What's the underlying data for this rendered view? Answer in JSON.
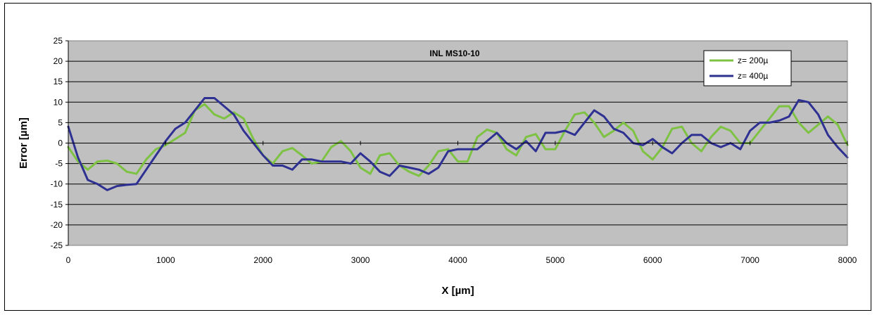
{
  "chart_data": {
    "type": "line",
    "title": "INL MS10-10",
    "xlabel": "X [µm]",
    "ylabel": "Error [µm]",
    "xlim": [
      0,
      8000
    ],
    "ylim": [
      -25,
      25
    ],
    "xticks": [
      0,
      1000,
      2000,
      3000,
      4000,
      5000,
      6000,
      7000,
      8000
    ],
    "yticks": [
      -25,
      -20,
      -15,
      -10,
      -5,
      0,
      5,
      10,
      15,
      20,
      25
    ],
    "grid": "horizontal",
    "legend": "top-right",
    "plot_background": "#c0c0c0",
    "series": [
      {
        "name": "z= 200µ",
        "color": "#7dc242",
        "x": [
          0,
          100,
          200,
          300,
          400,
          500,
          600,
          700,
          800,
          900,
          1000,
          1100,
          1200,
          1300,
          1400,
          1500,
          1600,
          1700,
          1800,
          1900,
          2000,
          2100,
          2200,
          2300,
          2400,
          2500,
          2600,
          2700,
          2800,
          2900,
          3000,
          3100,
          3200,
          3300,
          3400,
          3500,
          3600,
          3700,
          3800,
          3900,
          4000,
          4100,
          4200,
          4300,
          4400,
          4500,
          4600,
          4700,
          4800,
          4900,
          5000,
          5100,
          5200,
          5300,
          5400,
          5500,
          5600,
          5700,
          5800,
          5900,
          6000,
          6100,
          6200,
          6300,
          6400,
          6500,
          6600,
          6700,
          6800,
          6900,
          7000,
          7100,
          7200,
          7300,
          7400,
          7500,
          7600,
          7700,
          7800,
          7900,
          8000
        ],
        "y": [
          -1,
          -4.5,
          -6.5,
          -4.5,
          -4.3,
          -5,
          -7,
          -7.5,
          -4,
          -1.5,
          -0.5,
          1,
          2.5,
          8,
          9.5,
          7,
          6,
          7.5,
          6,
          1,
          -3,
          -5,
          -2,
          -1.2,
          -3,
          -5,
          -4.5,
          -1,
          0.5,
          -2,
          -6,
          -7.5,
          -3,
          -2.5,
          -5.5,
          -7,
          -8,
          -5.5,
          -2,
          -1.5,
          -4.5,
          -4.5,
          1.5,
          3.3,
          2.5,
          -1.5,
          -3,
          1.5,
          2.2,
          -1.5,
          -1.5,
          3,
          7,
          7.5,
          5,
          1.5,
          3,
          5,
          3,
          -2,
          -4,
          -1,
          3.5,
          4,
          0,
          -2,
          1.5,
          4,
          3,
          0,
          0,
          3,
          6,
          9,
          9,
          5,
          2.5,
          4.5,
          6.5,
          4.5,
          -0.5
        ]
      },
      {
        "name": "z= 400µ",
        "color": "#2e3192",
        "x": [
          0,
          100,
          200,
          300,
          400,
          500,
          600,
          700,
          800,
          900,
          1000,
          1100,
          1200,
          1300,
          1400,
          1500,
          1600,
          1700,
          1800,
          1900,
          2000,
          2100,
          2200,
          2300,
          2400,
          2500,
          2600,
          2700,
          2800,
          2900,
          3000,
          3100,
          3200,
          3300,
          3400,
          3500,
          3600,
          3700,
          3800,
          3900,
          4000,
          4100,
          4200,
          4300,
          4400,
          4500,
          4600,
          4700,
          4800,
          4900,
          5000,
          5100,
          5200,
          5300,
          5400,
          5500,
          5600,
          5700,
          5800,
          5900,
          6000,
          6100,
          6200,
          6300,
          6400,
          6500,
          6600,
          6700,
          6800,
          6900,
          7000,
          7100,
          7200,
          7300,
          7400,
          7500,
          7600,
          7700,
          7800,
          7900,
          8000
        ],
        "y": [
          4,
          -3.5,
          -9,
          -10,
          -11.5,
          -10.5,
          -10.2,
          -10,
          -6.5,
          -3,
          0.5,
          3.5,
          5,
          8,
          11,
          11,
          9,
          7,
          3,
          0,
          -3,
          -5.5,
          -5.5,
          -6.5,
          -4,
          -4,
          -4.5,
          -4.5,
          -4.5,
          -5,
          -2.5,
          -4.5,
          -7,
          -8,
          -5.5,
          -6,
          -6.5,
          -7.5,
          -6,
          -2,
          -1.5,
          -1.5,
          -1.5,
          0.5,
          2.5,
          0,
          -1.5,
          0.5,
          -2,
          2.5,
          2.5,
          3,
          2,
          5,
          8,
          6.5,
          3.5,
          2.5,
          0,
          -0.5,
          1,
          -1,
          -2.5,
          0,
          2,
          2,
          0,
          -1,
          0,
          -1.5,
          3,
          5,
          5,
          5.5,
          6.5,
          10.5,
          10,
          7,
          2,
          -1,
          -3.5
        ]
      }
    ]
  }
}
